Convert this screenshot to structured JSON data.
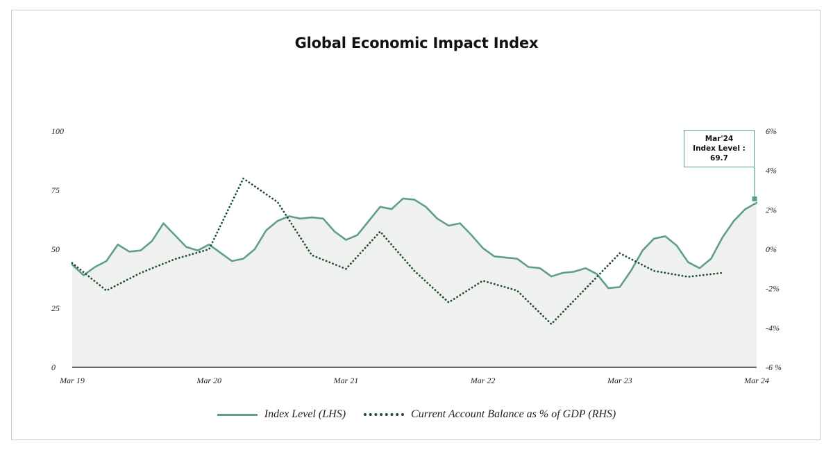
{
  "chart_data": {
    "type": "line",
    "title": "Global Economic Impact Index",
    "x_tick_labels": [
      "Mar 19",
      "Mar 20",
      "Mar 21",
      "Mar 22",
      "Mar 23",
      "Mar 24"
    ],
    "y_left": {
      "ticks": [
        0,
        25,
        50,
        75,
        100
      ],
      "tick_labels": [
        "0",
        "25",
        "50",
        "75",
        "100"
      ],
      "lim": [
        0,
        100
      ]
    },
    "y_right": {
      "ticks": [
        -6,
        -4,
        -2,
        0,
        2,
        4,
        6
      ],
      "tick_labels": [
        "-6 %",
        "-4%",
        "-2%",
        "0%",
        "2%",
        "4%",
        "6%"
      ],
      "lim": [
        -6,
        6
      ]
    },
    "x_range_months": [
      0,
      60
    ],
    "series": [
      {
        "name": "Index Level (LHS)",
        "axis": "left",
        "style": "solid-area",
        "color": "#5f9f87",
        "fill": "#eef1ee",
        "x": [
          0,
          1,
          2,
          3,
          4,
          5,
          6,
          7,
          8,
          9,
          10,
          11,
          12,
          13,
          14,
          15,
          16,
          17,
          18,
          19,
          20,
          21,
          22,
          23,
          24,
          25,
          26,
          27,
          28,
          29,
          30,
          31,
          32,
          33,
          34,
          35,
          36,
          37,
          38,
          39,
          40,
          41,
          42,
          43,
          44,
          45,
          46,
          47,
          48,
          49,
          50,
          51,
          52,
          53,
          54,
          55,
          56,
          57,
          58,
          59,
          60
        ],
        "values": [
          43.5,
          39,
          42.5,
          45,
          52,
          49,
          49.5,
          53.5,
          61,
          56,
          51,
          49.5,
          52,
          48.5,
          45,
          46,
          50,
          58,
          62,
          64,
          63,
          63.5,
          63,
          57.5,
          54,
          56,
          62,
          68,
          67,
          71.5,
          71,
          68,
          63,
          60,
          61,
          56,
          50.5,
          47,
          46.5,
          46,
          42.5,
          42,
          38.5,
          40,
          40.5,
          42,
          39.5,
          33.5,
          34,
          41,
          49.5,
          54.5,
          55.5,
          51.5,
          44.5,
          42,
          46,
          55,
          62,
          67,
          69.7
        ]
      },
      {
        "name": "Current Account Balance as % of GDP (RHS)",
        "axis": "right",
        "style": "dotted",
        "color": "#1f4d35",
        "x": [
          0,
          3,
          6,
          9,
          12,
          15,
          18,
          21,
          24,
          27,
          30,
          33,
          36,
          39,
          42,
          45,
          48,
          51,
          54,
          57
        ],
        "values": [
          -0.7,
          -2.1,
          -1.2,
          -0.5,
          0,
          3.6,
          2.4,
          -0.3,
          -1,
          0.9,
          -1.1,
          -2.7,
          -1.6,
          -2.1,
          -3.8,
          -2,
          -0.2,
          -1.1,
          -1.4,
          -1.2
        ]
      }
    ],
    "annotation": {
      "x": 60,
      "value": 69.7,
      "lines": [
        "Mar'24",
        "Index Level :",
        "69.7"
      ]
    },
    "legend_position": "bottom-center",
    "grid": false
  },
  "legend": {
    "items": [
      "Index Level (LHS)",
      "Current Account Balance as % of GDP (RHS)"
    ]
  }
}
